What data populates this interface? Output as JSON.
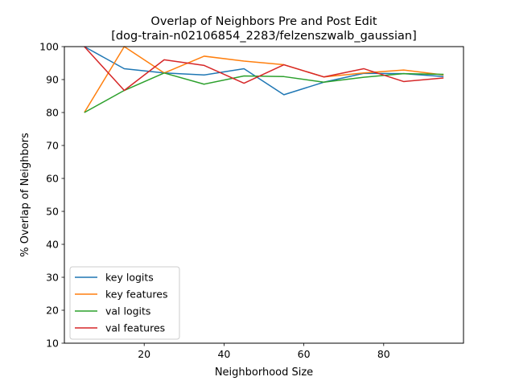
{
  "chart_data": {
    "type": "line",
    "title": "Overlap of Neighbors Pre and Post Edit\n[dog-train-n02106854_2283/felzenszwalb_gaussian]",
    "title_lines": [
      "Overlap of Neighbors Pre and Post Edit",
      "[dog-train-n02106854_2283/felzenszwalb_gaussian]"
    ],
    "xlabel": "Neighborhood Size",
    "ylabel": "% Overlap of Neighbors",
    "xlim": [
      0,
      100
    ],
    "ylim": [
      10,
      100
    ],
    "xticks": [
      20,
      40,
      60,
      80
    ],
    "yticks": [
      10,
      20,
      30,
      40,
      50,
      60,
      70,
      80,
      90,
      100
    ],
    "grid": false,
    "legend_position": "lower-left",
    "x": [
      5,
      15,
      25,
      35,
      45,
      55,
      65,
      75,
      85,
      95
    ],
    "series": [
      {
        "name": "key logits",
        "color": "#1f77b4",
        "values": [
          100,
          93.3,
          92.0,
          91.4,
          93.3,
          85.4,
          89.2,
          91.9,
          91.8,
          90.9
        ]
      },
      {
        "name": "key features",
        "color": "#ff7f0e",
        "values": [
          80,
          100,
          92.0,
          97.1,
          95.6,
          94.5,
          90.8,
          92.0,
          92.9,
          91.4
        ]
      },
      {
        "name": "val logits",
        "color": "#2ca02c",
        "values": [
          80,
          86.7,
          92.0,
          88.6,
          91.1,
          90.9,
          89.2,
          90.7,
          91.8,
          91.6
        ]
      },
      {
        "name": "val features",
        "color": "#d62728",
        "values": [
          100,
          86.7,
          96.0,
          94.3,
          88.9,
          94.5,
          90.8,
          93.3,
          89.4,
          90.5
        ]
      }
    ]
  }
}
